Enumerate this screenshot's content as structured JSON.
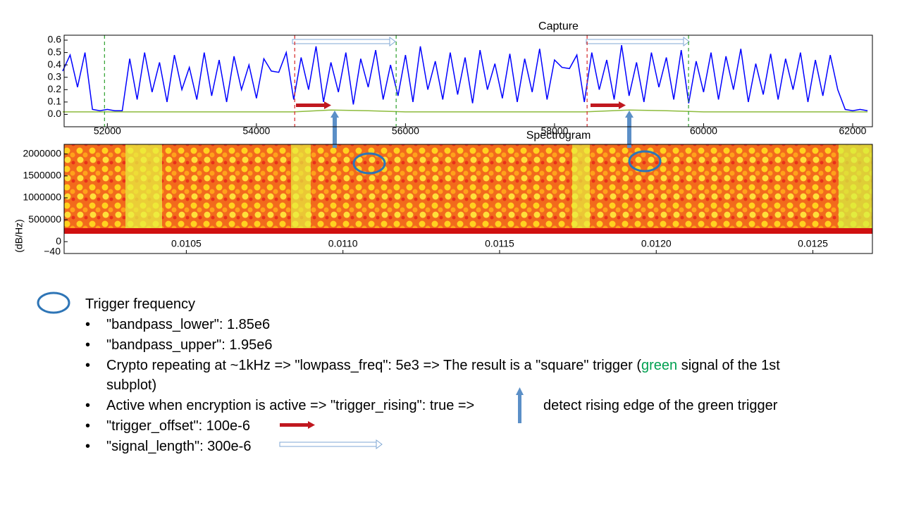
{
  "chart_data": [
    {
      "type": "line",
      "title": "Capture",
      "x": [
        51400,
        51500,
        51600,
        51700,
        51800,
        51900,
        52000,
        52100,
        52200,
        52300,
        52400,
        52500,
        52600,
        52700,
        52800,
        52900,
        53000,
        53100,
        53200,
        53300,
        53400,
        53500,
        53600,
        53700,
        53800,
        53900,
        54000,
        54100,
        54200,
        54300,
        54400,
        54500,
        54600,
        54700,
        54800,
        54900,
        55000,
        55100,
        55200,
        55300,
        55400,
        55500,
        55600,
        55700,
        55800,
        55900,
        56000,
        56100,
        56200,
        56300,
        56400,
        56500,
        56600,
        56700,
        56800,
        56900,
        57000,
        57100,
        57200,
        57300,
        57400,
        57500,
        57600,
        57700,
        57800,
        57900,
        58000,
        58100,
        58200,
        58300,
        58400,
        58500,
        58600,
        58700,
        58800,
        58900,
        59000,
        59100,
        59200,
        59300,
        59400,
        59500,
        59600,
        59700,
        59800,
        59900,
        60000,
        60100,
        60200,
        60300,
        60400,
        60500,
        60600,
        60700,
        60800,
        60900,
        61000,
        61100,
        61200,
        61300,
        61400,
        61500,
        61600,
        61700,
        61800,
        61900,
        62000,
        62100,
        62200
      ],
      "series": [
        {
          "color": "#0000ff",
          "values": [
            0.35,
            0.48,
            0.22,
            0.5,
            0.04,
            0.03,
            0.04,
            0.03,
            0.03,
            0.45,
            0.12,
            0.5,
            0.18,
            0.42,
            0.1,
            0.48,
            0.2,
            0.38,
            0.12,
            0.5,
            0.15,
            0.44,
            0.1,
            0.47,
            0.2,
            0.4,
            0.13,
            0.45,
            0.35,
            0.34,
            0.5,
            0.12,
            0.46,
            0.2,
            0.55,
            0.1,
            0.42,
            0.18,
            0.5,
            0.08,
            0.45,
            0.22,
            0.52,
            0.12,
            0.4,
            0.15,
            0.48,
            0.1,
            0.55,
            0.2,
            0.43,
            0.12,
            0.5,
            0.16,
            0.46,
            0.09,
            0.52,
            0.2,
            0.41,
            0.13,
            0.49,
            0.1,
            0.45,
            0.18,
            0.53,
            0.12,
            0.44,
            0.38,
            0.37,
            0.48,
            0.1,
            0.5,
            0.2,
            0.44,
            0.12,
            0.56,
            0.15,
            0.42,
            0.1,
            0.5,
            0.22,
            0.46,
            0.12,
            0.52,
            0.09,
            0.43,
            0.18,
            0.5,
            0.12,
            0.47,
            0.2,
            0.53,
            0.1,
            0.41,
            0.16,
            0.49,
            0.12,
            0.45,
            0.2,
            0.5,
            0.1,
            0.44,
            0.15,
            0.48,
            0.2,
            0.04,
            0.03,
            0.04,
            0.03
          ]
        },
        {
          "color": "#8dbb3c",
          "x": [
            51400,
            54500,
            55000,
            55500,
            56000,
            58400,
            59000,
            59500,
            60000,
            62200
          ],
          "values": [
            0.02,
            0.02,
            0.035,
            0.03,
            0.02,
            0.02,
            0.035,
            0.03,
            0.02,
            0.02
          ]
        }
      ],
      "vlines": [
        {
          "x": 51962,
          "color": "#2ca02c"
        },
        {
          "x": 55875,
          "color": "#2ca02c"
        },
        {
          "x": 59798,
          "color": "#2ca02c"
        },
        {
          "x": 54514,
          "color": "#d62728"
        },
        {
          "x": 58437,
          "color": "#d62728"
        }
      ],
      "xlim": [
        51420,
        62265
      ],
      "xticks": [
        52000,
        54000,
        56000,
        58000,
        60000,
        62000
      ],
      "ylim": [
        -0.1,
        0.64
      ],
      "yticks": [
        {
          "value": 0.0,
          "label": "0.0"
        },
        0.1,
        0.2,
        0.3,
        0.4,
        0.5,
        0.6
      ]
    },
    {
      "type": "heatmap",
      "title": "Spectrogram",
      "ylabel": "(dB/Hz)",
      "overlap_label": "−40",
      "xlim": [
        0.01011,
        0.01269
      ],
      "xticks": [
        0.0105,
        {
          "value": 0.011,
          "label": "0.0110"
        },
        0.0115,
        {
          "value": 0.012,
          "label": "0.0120"
        },
        0.0125
      ],
      "ylim": [
        -270000,
        2220000
      ],
      "yticks": [
        0,
        500000,
        1000000,
        1500000,
        2000000
      ]
    }
  ],
  "notes": {
    "legend_label": "Trigger frequency",
    "bullets": [
      [
        "\"bandpass_lower\": 1.85e6"
      ],
      [
        "\"bandpass_upper\": 1.95e6"
      ],
      [
        "Crypto repeating at ~1kHz => \"lowpass_freq\": 5e3 => The result is a \"square\" trigger (",
        "green",
        " signal of the 1st",
        "subplot)"
      ],
      [
        "Active when encryption is active => \"trigger_rising\": true =>",
        "detect rising edge of the green trigger"
      ],
      [
        "\"trigger_offset\": 100e-6"
      ],
      [
        "\"signal_length\": 300e-6"
      ]
    ]
  }
}
